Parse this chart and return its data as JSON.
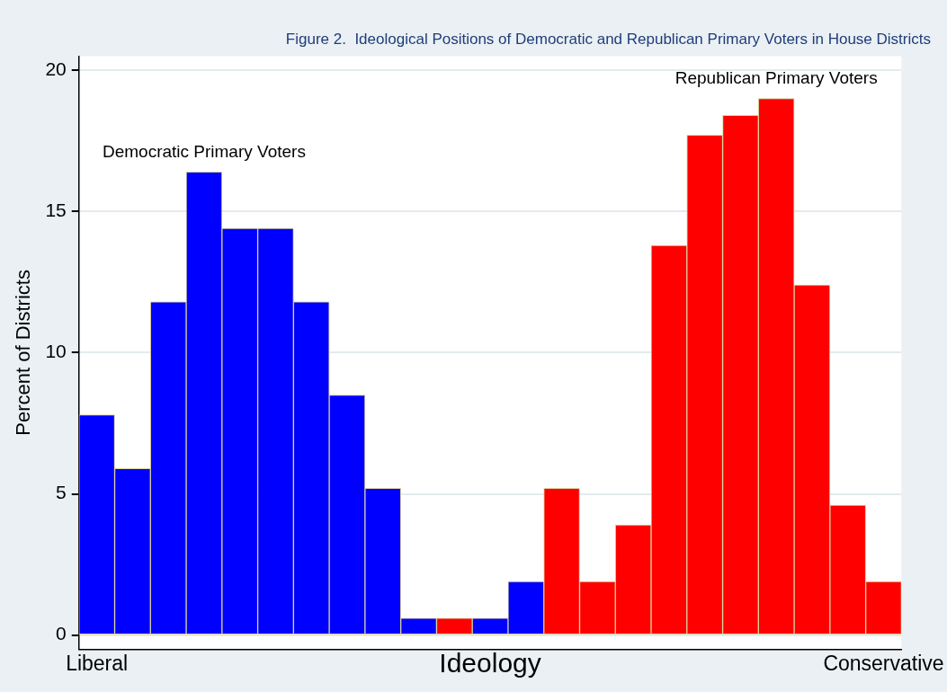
{
  "chart_data": {
    "type": "bar",
    "title": "Figure 2.  Ideological Positions of Democratic and Republican Primary Voters in House Districts",
    "xlabel": "Ideology",
    "ylabel": "Percent of Districts",
    "categories": [
      "Liberal",
      null,
      null,
      null,
      null,
      null,
      null,
      null,
      null,
      null,
      null,
      null,
      null,
      null,
      null,
      null,
      null,
      null,
      null,
      null,
      null,
      null,
      "Conservative"
    ],
    "ylim": [
      -0.5,
      20.5
    ],
    "yticks": [
      0,
      5,
      10,
      15,
      20
    ],
    "grid": "y",
    "legend": false,
    "series": [
      {
        "name": "Democratic Primary Voters",
        "color": "#0000ff",
        "values": [
          7.8,
          5.9,
          11.8,
          16.4,
          14.4,
          14.4,
          11.8,
          8.5,
          5.2,
          0.6,
          null,
          0.6,
          1.9,
          null,
          null,
          null,
          null,
          null,
          null,
          null,
          null,
          null,
          null
        ]
      },
      {
        "name": "Republican Primary Voters",
        "color": "#ff0000",
        "values": [
          null,
          null,
          null,
          null,
          null,
          null,
          null,
          null,
          null,
          null,
          0.6,
          null,
          null,
          5.2,
          1.9,
          3.9,
          13.8,
          17.7,
          18.4,
          19.0,
          12.4,
          4.6,
          1.9
        ]
      }
    ]
  }
}
